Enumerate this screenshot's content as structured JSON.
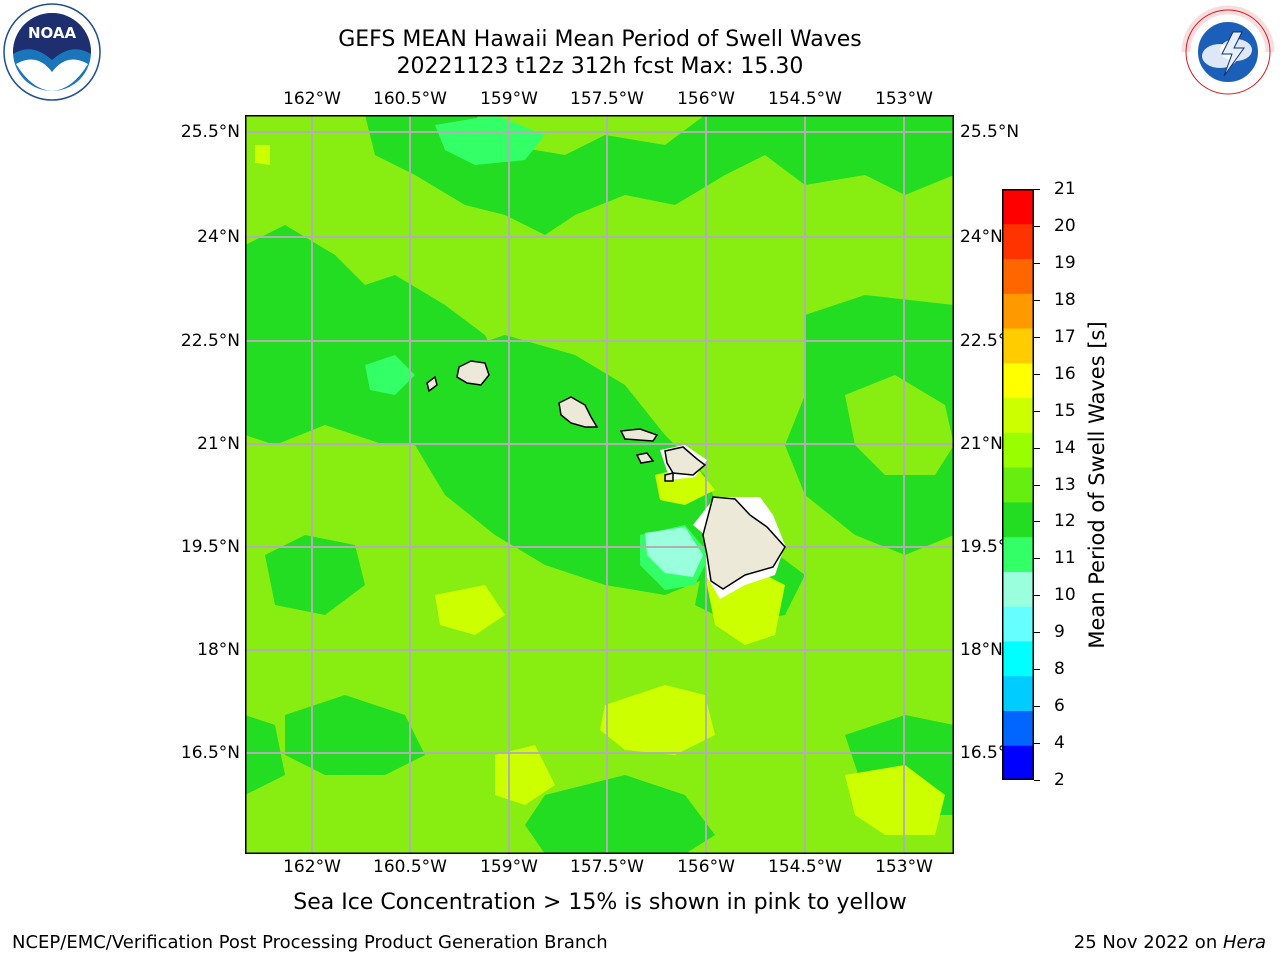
{
  "title": {
    "line1": "GEFS MEAN Hawaii Mean Period of Swell Waves",
    "line2": "20221123 t12z 312h fcst   Max: 15.30"
  },
  "map": {
    "lon_labels": [
      "162°W",
      "160.5°W",
      "159°W",
      "157.5°W",
      "156°W",
      "154.5°W",
      "153°W"
    ],
    "lat_labels": [
      "25.5°N",
      "24°N",
      "22.5°N",
      "21°N",
      "19.5°N",
      "18°N",
      "16.5°N"
    ],
    "land_color": "#ece9d8",
    "grid_color": "#b0b0b0"
  },
  "colorbar": {
    "label": "Mean Period of Swell Waves [s]",
    "ticks": [
      "2",
      "4",
      "6",
      "8",
      "9",
      "10",
      "11",
      "12",
      "13",
      "14",
      "15",
      "16",
      "17",
      "18",
      "19",
      "20",
      "21"
    ],
    "colors": [
      "#0000ff",
      "#0066ff",
      "#00ccff",
      "#00ffff",
      "#66ffff",
      "#99ffdd",
      "#33ff66",
      "#22dd22",
      "#66ee11",
      "#99ff00",
      "#ccff00",
      "#ffff00",
      "#ffcc00",
      "#ff9900",
      "#ff6600",
      "#ff3300",
      "#ff0000"
    ]
  },
  "footnote": "Sea Ice Concentration > 15% is shown in pink to yellow",
  "footer": {
    "left": "NCEP/EMC/Verification Post Processing Product Generation Branch",
    "right_date": "25 Nov 2022 on ",
    "right_machine": "Hera"
  },
  "logos": {
    "noaa_text": "NOAA",
    "nws_text": "NATIONAL WEATHER SERVICE"
  }
}
